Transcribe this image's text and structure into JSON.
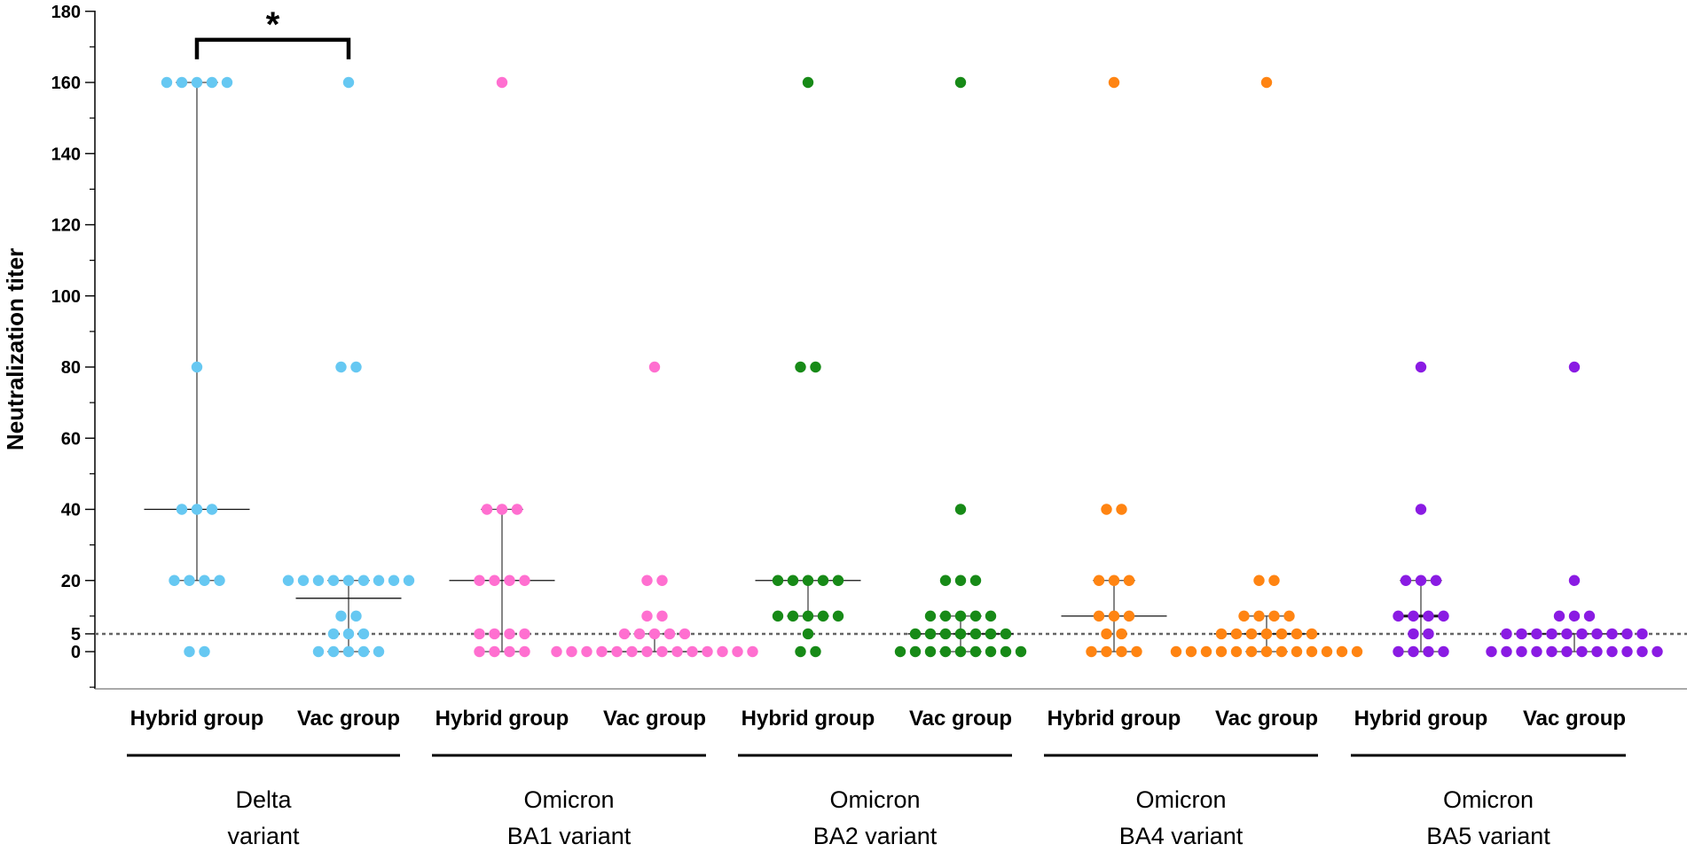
{
  "chart_data": {
    "type": "scatter",
    "ylabel": "Neutralization titer",
    "y_ticks": [
      0,
      5,
      20,
      40,
      60,
      80,
      100,
      120,
      140,
      160,
      180
    ],
    "y_tick_labels": [
      "0",
      "5",
      "20",
      "40",
      "60",
      "80",
      "100",
      "120",
      "140",
      "160",
      "180"
    ],
    "ylim": [
      -10,
      180
    ],
    "detection_limit": 5,
    "variants": [
      {
        "line1": "Delta",
        "line2": "variant"
      },
      {
        "line1": "Omicron",
        "line2": "BA1 variant"
      },
      {
        "line1": "Omicron",
        "line2": "BA2 variant"
      },
      {
        "line1": "Omicron",
        "line2": "BA4 variant"
      },
      {
        "line1": "Omicron",
        "line2": "BA5 variant"
      }
    ],
    "significance": {
      "label": "*",
      "from_group": 0,
      "to_group": 1,
      "y": 172
    },
    "series": [
      {
        "name": "Hybrid group",
        "variant": "Delta variant",
        "color": "#66c8f2",
        "median": 40,
        "iqr": [
          20,
          160
        ],
        "points": [
          [
            160,
            5
          ],
          [
            80,
            1
          ],
          [
            40,
            3
          ],
          [
            20,
            4
          ],
          [
            0,
            2
          ]
        ]
      },
      {
        "name": "Vac group",
        "variant": "Delta variant",
        "color": "#66c8f2",
        "median": 15,
        "iqr": [
          0,
          20
        ],
        "points": [
          [
            160,
            1
          ],
          [
            80,
            2
          ],
          [
            20,
            9
          ],
          [
            10,
            2
          ],
          [
            5,
            3
          ],
          [
            0,
            5
          ]
        ]
      },
      {
        "name": "Hybrid group",
        "variant": "Omicron BA1 variant",
        "color": "#ff6fd0",
        "median": 20,
        "iqr": [
          0,
          40
        ],
        "points": [
          [
            160,
            1
          ],
          [
            40,
            3
          ],
          [
            20,
            4
          ],
          [
            5,
            4
          ],
          [
            0,
            4
          ]
        ]
      },
      {
        "name": "Vac group",
        "variant": "Omicron BA1 variant",
        "color": "#ff6fd0",
        "median": 0,
        "iqr": [
          0,
          5
        ],
        "points": [
          [
            80,
            1
          ],
          [
            20,
            2
          ],
          [
            10,
            2
          ],
          [
            5,
            5
          ],
          [
            0,
            14
          ]
        ]
      },
      {
        "name": "Hybrid group",
        "variant": "Omicron BA2 variant",
        "color": "#178a17",
        "median": 20,
        "iqr": [
          10,
          20
        ],
        "points": [
          [
            160,
            1
          ],
          [
            80,
            2
          ],
          [
            20,
            5
          ],
          [
            10,
            5
          ],
          [
            5,
            1
          ],
          [
            0,
            2
          ]
        ]
      },
      {
        "name": "Vac group",
        "variant": "Omicron BA2 variant",
        "color": "#178a17",
        "median": 5,
        "iqr": [
          0,
          10
        ],
        "points": [
          [
            160,
            1
          ],
          [
            40,
            1
          ],
          [
            20,
            3
          ],
          [
            10,
            5
          ],
          [
            5,
            7
          ],
          [
            0,
            9
          ]
        ]
      },
      {
        "name": "Hybrid group",
        "variant": "Omicron BA4 variant",
        "color": "#ff8412",
        "median": 10,
        "iqr": [
          0,
          20
        ],
        "points": [
          [
            160,
            1
          ],
          [
            40,
            2
          ],
          [
            20,
            3
          ],
          [
            10,
            3
          ],
          [
            5,
            2
          ],
          [
            0,
            4
          ]
        ]
      },
      {
        "name": "Vac group",
        "variant": "Omicron BA4 variant",
        "color": "#ff8412",
        "median": 5,
        "iqr": [
          0,
          10
        ],
        "points": [
          [
            160,
            1
          ],
          [
            20,
            2
          ],
          [
            10,
            4
          ],
          [
            5,
            7
          ],
          [
            0,
            13
          ]
        ]
      },
      {
        "name": "Hybrid group",
        "variant": "Omicron BA5 variant",
        "color": "#8a1be3",
        "median": 10,
        "iqr": [
          0,
          20
        ],
        "points": [
          [
            80,
            1
          ],
          [
            40,
            1
          ],
          [
            20,
            3
          ],
          [
            10,
            4
          ],
          [
            5,
            2
          ],
          [
            0,
            4
          ]
        ]
      },
      {
        "name": "Vac group",
        "variant": "Omicron BA5 variant",
        "color": "#8a1be3",
        "median": 5,
        "iqr": [
          0,
          5
        ],
        "points": [
          [
            80,
            1
          ],
          [
            20,
            1
          ],
          [
            10,
            3
          ],
          [
            5,
            10
          ],
          [
            0,
            12
          ]
        ]
      }
    ]
  }
}
